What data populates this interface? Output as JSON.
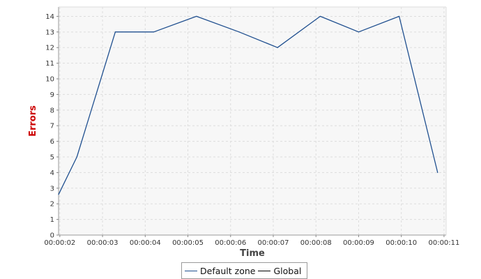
{
  "chart_data": {
    "type": "line",
    "xlabel": "Time",
    "ylabel": "Errors",
    "ylim": [
      0,
      14.6
    ],
    "yticks": [
      0,
      1,
      2,
      3,
      4,
      5,
      6,
      7,
      8,
      9,
      10,
      11,
      12,
      13,
      14
    ],
    "x_ticks": [
      "00:00:02",
      "00:00:03",
      "00:00:04",
      "00:00:05",
      "00:00:06",
      "00:00:07",
      "00:00:08",
      "00:00:09",
      "00:00:10",
      "00:00:11"
    ],
    "x_tick_seconds": [
      2,
      3,
      4,
      5,
      6,
      7,
      8,
      9,
      10,
      11
    ],
    "xlim_seconds": [
      1.97,
      11.05
    ],
    "grid": true,
    "legend_position": "bottom-center",
    "series": [
      {
        "name": "Default zone",
        "color": "#1f4f8f",
        "x_seconds": [
          1.97,
          2.4,
          3.3,
          4.2,
          5.2,
          6.2,
          7.1,
          8.1,
          9.0,
          9.95,
          10.85
        ],
        "values": [
          2.6,
          5.0,
          13.0,
          13.0,
          14.0,
          13.0,
          12.0,
          14.0,
          13.0,
          14.0,
          4.0
        ]
      },
      {
        "name": "Global",
        "color": "#000000",
        "x_seconds": [],
        "values": []
      }
    ]
  },
  "colors": {
    "plot_background": "#f7f7f7",
    "grid": "#dddddd",
    "ylabel": "#cc0000",
    "xlabel": "#444444"
  }
}
